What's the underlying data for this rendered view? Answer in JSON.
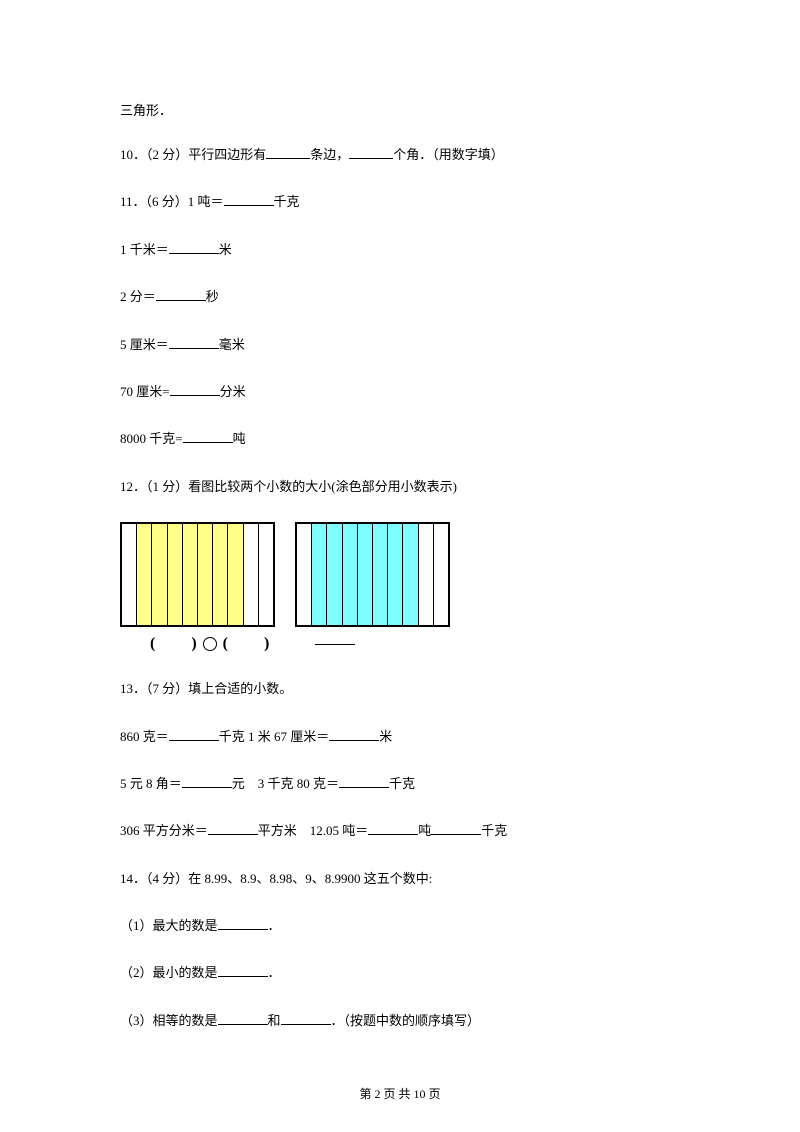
{
  "topLine": "三角形．",
  "q10": {
    "prefix": "10．（2 分）平行四边形有",
    "mid": "条边，",
    "suffix": "个角．（用数字填）"
  },
  "q11": {
    "header": "11．（6 分）1 吨＝",
    "unit1": "千克",
    "l2a": "1 千米＝",
    "l2b": "米",
    "l3a": "2 分＝",
    "l3b": "秒",
    "l4a": "5 厘米＝",
    "l4b": "毫米",
    "l5a": "70 厘米=",
    "l5b": "分米",
    "l6a": "8000 千克=",
    "l6b": "吨"
  },
  "q12": {
    "text": "12．（1 分）看图比较两个小数的大小(涂色部分用小数表示)",
    "chart1": {
      "strips": [
        "white",
        "yellow",
        "yellow",
        "yellow",
        "yellow",
        "yellow",
        "yellow",
        "yellow",
        "white",
        "white"
      ],
      "borderColor": "#000000",
      "fillYellow": "#ffff8a",
      "fillWhite": "#ffffff"
    },
    "chart2": {
      "strips": [
        "white",
        "cyan",
        "cyan",
        "cyan",
        "cyan",
        "cyan",
        "cyan",
        "cyan",
        "white",
        "white"
      ],
      "borderColor": "#000000",
      "fillCyan": "#7fffff",
      "fillWhite": "#ffffff"
    },
    "parenL": "(",
    "parenR": ")"
  },
  "q13": {
    "header": "13．（7 分）填上合适的小数。",
    "l1a": "860 克＝",
    "l1b": "千克 1 米 67 厘米＝",
    "l1c": "米",
    "l2a": "5 元 8 角＝",
    "l2b": "元　3 千克 80 克＝",
    "l2c": "千克",
    "l3a": "306 平方分米＝",
    "l3b": "平方米　12.05 吨＝",
    "l3c": "吨",
    "l3d": "千克"
  },
  "q14": {
    "header": "14．（4 分）在 8.99、8.9、8.98、9、8.9900 这五个数中:",
    "l1": "（1）最大的数是",
    "l1s": "．",
    "l2": "（2）最小的数是",
    "l2s": "．",
    "l3a": "（3）相等的数是",
    "l3b": "和",
    "l3c": "．（按题中数的顺序填写）"
  },
  "footer": "第 2 页 共 10 页"
}
